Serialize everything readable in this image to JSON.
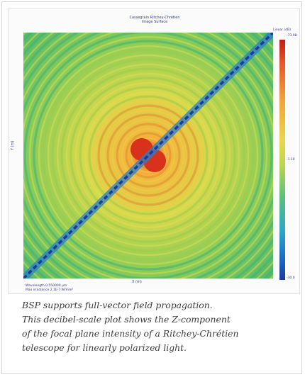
{
  "figure": {
    "title_line1": "Cassegrain Ritchey-Chrétien",
    "title_line2": "Image Surface",
    "y_axis_label": "Y (m)",
    "x_axis_label": "X (m)",
    "colorbar": {
      "unit_label": "Linear (dB)",
      "max_label": "-73.98",
      "mid_label": "-1.10",
      "min_label": "-30.0",
      "colors": [
        "#c01e14",
        "#e3542a",
        "#f0a33a",
        "#e9d64c",
        "#bcd64e",
        "#5fc07a",
        "#2ba6c9",
        "#1966c0",
        "#1a3a9e"
      ]
    },
    "footnote_line1": "Wavelength 0.550000 μm",
    "footnote_line2": "Max irradiance 2.1E-7 W/mm²"
  },
  "caption": {
    "lines": [
      "BSP supports full-vector field propagation.",
      "This decibel-scale plot shows the Z-component",
      "of the focal plane intensity of a Ritchey-Chrétien",
      "telescope for linearly polarized light."
    ]
  }
}
